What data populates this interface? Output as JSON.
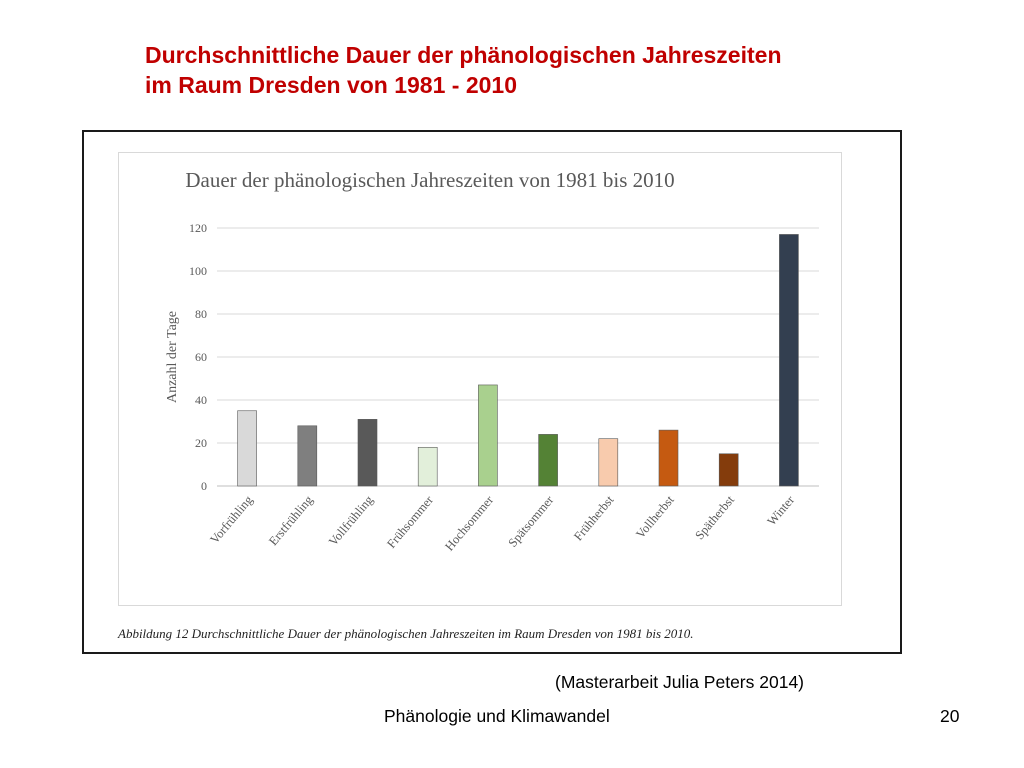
{
  "slide": {
    "title_line1": "Durchschnittliche Dauer der phänologischen Jahreszeiten",
    "title_line2": "im Raum Dresden von 1981 - 2010",
    "source": "(Masterarbeit Julia Peters 2014)",
    "footer": "Phänologie und Klimawandel",
    "page_number": "20",
    "title_color": "#c00000"
  },
  "figure": {
    "caption": "Abbildung 12 Durchschnittliche Dauer der phänologischen Jahreszeiten im Raum Dresden von 1981 bis 2010."
  },
  "chart_data": {
    "type": "bar",
    "title": "Dauer der phänologischen Jahreszeiten von 1981 bis 2010",
    "xlabel": "",
    "ylabel": "Anzahl der Tage",
    "ylim": [
      0,
      120
    ],
    "yticks": [
      0,
      20,
      40,
      60,
      80,
      100,
      120
    ],
    "grid": true,
    "legend": "none",
    "categories": [
      "Vorfrühling",
      "Erstfrühling",
      "Vollfrühling",
      "Frühsommer",
      "Hochsommer",
      "Spätsommer",
      "Frühherbst",
      "Vollherbst",
      "Spätherbst",
      "Winter"
    ],
    "values": [
      35,
      28,
      31,
      18,
      47,
      24,
      22,
      26,
      15,
      117
    ],
    "colors": [
      "#d9d9d9",
      "#7f7f7f",
      "#595959",
      "#e2efda",
      "#a9d08e",
      "#548235",
      "#f8cbad",
      "#c55a11",
      "#843c0c",
      "#333f50"
    ]
  }
}
